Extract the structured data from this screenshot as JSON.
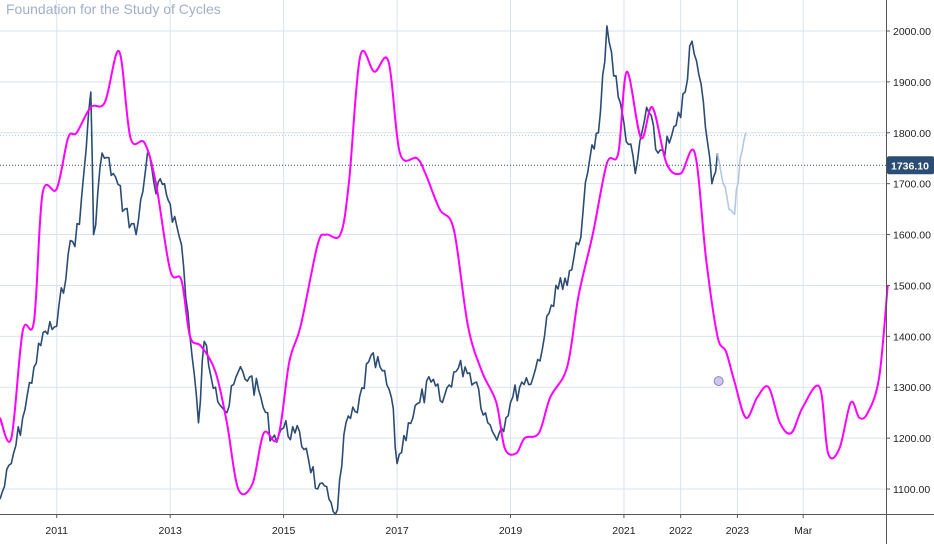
{
  "watermark": "Foundation for the Study of Cycles",
  "colors": {
    "price": "#2b4c73",
    "price_projection": "#b3c8e4",
    "cycle": "#ff00ff",
    "grid": "#d9e3ef",
    "last_price_tag": "#2b4c73"
  },
  "chart_data": {
    "type": "line",
    "title": "",
    "xlabel": "",
    "ylabel": "",
    "ylim": [
      1050,
      2050
    ],
    "grid": true,
    "y_ticks": [
      "1100.00",
      "1200.00",
      "1300.00",
      "1400.00",
      "1500.00",
      "1600.00",
      "1700.00",
      "1800.00",
      "1900.00",
      "2000.00"
    ],
    "x_ticks": [
      {
        "label": "2011",
        "x": 2011.0
      },
      {
        "label": "2013",
        "x": 2013.0
      },
      {
        "label": "2015",
        "x": 2015.0
      },
      {
        "label": "2017",
        "x": 2017.0
      },
      {
        "label": "2019",
        "x": 2019.0
      },
      {
        "label": "2021",
        "x": 2021.0
      },
      {
        "label": "2022",
        "x": 2022.0
      },
      {
        "label": "2023",
        "x": 2023.0
      },
      {
        "label": "Mar",
        "x": 2024.16
      }
    ],
    "last_price_label": "1736.10",
    "last_price": 1736.1,
    "series": [
      {
        "key": "price",
        "x": [
          2010.0,
          2010.2,
          2010.4,
          2010.6,
          2010.8,
          2011.0,
          2011.2,
          2011.4,
          2011.6,
          2011.65,
          2011.8,
          2012.0,
          2012.2,
          2012.4,
          2012.6,
          2012.75,
          2012.9,
          2013.0,
          2013.2,
          2013.35,
          2013.5,
          2013.6,
          2013.8,
          2014.0,
          2014.2,
          2014.4,
          2014.6,
          2014.8,
          2015.0,
          2015.2,
          2015.4,
          2015.6,
          2015.8,
          2015.95,
          2016.1,
          2016.3,
          2016.5,
          2016.7,
          2016.9,
          2017.0,
          2017.2,
          2017.4,
          2017.6,
          2017.8,
          2018.0,
          2018.2,
          2018.4,
          2018.6,
          2018.8,
          2019.0,
          2019.2,
          2019.4,
          2019.6,
          2019.8,
          2020.0,
          2020.2,
          2020.4,
          2020.55,
          2020.7,
          2020.9,
          2021.0,
          2021.2,
          2021.4,
          2021.6,
          2021.8,
          2022.0,
          2022.2,
          2022.4,
          2022.55,
          2022.65
        ],
        "y": [
          1080,
          1150,
          1240,
          1340,
          1410,
          1420,
          1560,
          1620,
          1880,
          1600,
          1760,
          1720,
          1650,
          1600,
          1760,
          1680,
          1700,
          1660,
          1580,
          1400,
          1230,
          1390,
          1300,
          1250,
          1330,
          1320,
          1280,
          1200,
          1220,
          1210,
          1180,
          1100,
          1080,
          1060,
          1230,
          1250,
          1350,
          1340,
          1280,
          1150,
          1230,
          1270,
          1310,
          1270,
          1330,
          1340,
          1310,
          1230,
          1210,
          1270,
          1310,
          1320,
          1400,
          1500,
          1500,
          1580,
          1750,
          1800,
          2010,
          1870,
          1820,
          1720,
          1850,
          1760,
          1780,
          1830,
          1980,
          1860,
          1700,
          1760
        ]
      },
      {
        "key": "price_projection",
        "x": [
          2022.65,
          2022.75,
          2022.85,
          2022.95,
          2023.05,
          2023.15
        ],
        "y": [
          1760,
          1700,
          1650,
          1640,
          1750,
          1800
        ]
      },
      {
        "key": "cycle",
        "x": [
          2010.0,
          2010.2,
          2010.4,
          2010.6,
          2010.75,
          2011.0,
          2011.2,
          2011.35,
          2011.6,
          2011.85,
          2012.1,
          2012.3,
          2012.55,
          2012.75,
          2013.0,
          2013.2,
          2013.35,
          2013.55,
          2013.8,
          2014.0,
          2014.2,
          2014.45,
          2014.65,
          2014.9,
          2015.1,
          2015.3,
          2015.6,
          2015.75,
          2016.0,
          2016.15,
          2016.35,
          2016.6,
          2016.85,
          2017.05,
          2017.35,
          2017.5,
          2017.75,
          2018.0,
          2018.25,
          2018.5,
          2018.75,
          2018.9,
          2019.1,
          2019.25,
          2019.5,
          2019.7,
          2020.0,
          2020.2,
          2020.45,
          2020.7,
          2020.9,
          2021.05,
          2021.3,
          2021.5,
          2021.75,
          2022.0,
          2022.25,
          2022.45,
          2022.65,
          2022.8,
          2022.95,
          2023.15,
          2023.35,
          2023.55,
          2023.75,
          2023.95,
          2024.15,
          2024.45,
          2024.6,
          2024.8,
          2025.0,
          2025.15,
          2025.3,
          2025.5,
          2025.65
        ],
        "y": [
          1240,
          1200,
          1410,
          1430,
          1680,
          1690,
          1790,
          1800,
          1850,
          1860,
          1960,
          1790,
          1780,
          1700,
          1530,
          1510,
          1400,
          1380,
          1330,
          1230,
          1100,
          1110,
          1210,
          1200,
          1350,
          1420,
          1580,
          1600,
          1600,
          1700,
          1950,
          1920,
          1940,
          1760,
          1750,
          1720,
          1650,
          1610,
          1420,
          1330,
          1270,
          1180,
          1170,
          1200,
          1210,
          1280,
          1340,
          1480,
          1600,
          1740,
          1760,
          1920,
          1790,
          1850,
          1740,
          1720,
          1760,
          1550,
          1400,
          1370,
          1310,
          1240,
          1280,
          1300,
          1230,
          1210,
          1260,
          1300,
          1170,
          1180,
          1270,
          1240,
          1250,
          1320,
          1500
        ]
      }
    ],
    "marker": {
      "x": 2022.67,
      "y": 1312
    }
  }
}
